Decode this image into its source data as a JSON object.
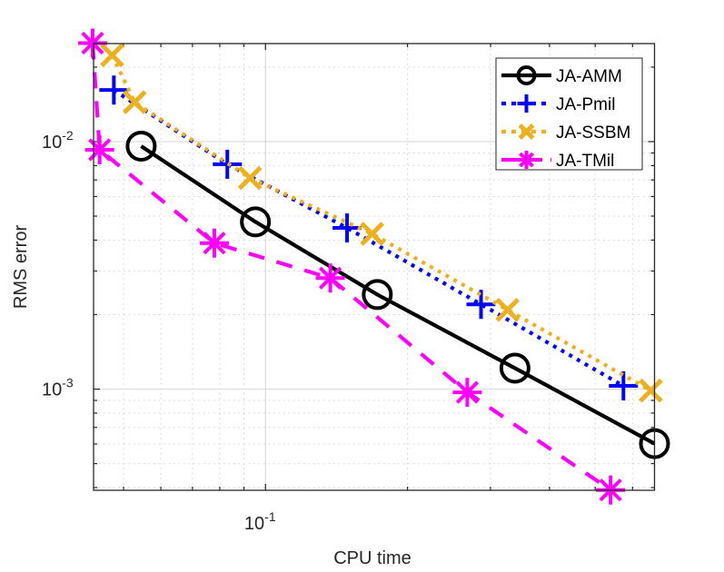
{
  "chart_data": {
    "type": "line",
    "title": "",
    "xlabel": "CPU time",
    "ylabel": "RMS error",
    "xscale": "log",
    "yscale": "log",
    "xlim": [
      0.0432,
      0.668
    ],
    "ylim": [
      0.00039,
      0.0249
    ],
    "grid": true,
    "minor_grid": true,
    "legend_position": "top-right",
    "x_ticks": [
      {
        "base": "10",
        "exp": "-1",
        "value": 0.1
      }
    ],
    "y_ticks": [
      {
        "base": "10",
        "exp": "-2",
        "value": 0.01
      },
      {
        "base": "10",
        "exp": "-3",
        "value": 0.001
      }
    ],
    "series": [
      {
        "name": "JA-AMM",
        "color": "#000000",
        "line_style": "solid",
        "marker": "circle",
        "x": [
          0.0545,
          0.0952,
          0.1726,
          0.338,
          0.668
        ],
        "y": [
          0.00959,
          0.00474,
          0.00241,
          0.001215,
          0.000602
        ]
      },
      {
        "name": "JA-Pmil",
        "color": "#0000FF",
        "line_style": "dotted",
        "marker": "plus",
        "x": [
          0.0477,
          0.083,
          0.1489,
          0.2864,
          0.574
        ],
        "y": [
          0.01616,
          0.0081,
          0.00448,
          0.0022,
          0.00103
        ]
      },
      {
        "name": "JA-SSBM",
        "color": "#EDB120",
        "line_style": "dotted",
        "marker": "x",
        "x": [
          0.0473,
          0.0528,
          0.0927,
          0.1683,
          0.326,
          0.656
        ],
        "y": [
          0.02234,
          0.01443,
          0.00713,
          0.00424,
          0.00209,
          0.000986
        ]
      },
      {
        "name": "JA-TMil",
        "color": "#FF00FF",
        "line_style": "dashed",
        "marker": "asterisk",
        "x": [
          0.043,
          0.0445,
          0.0779,
          0.1372,
          0.2678,
          0.539
        ],
        "y": [
          0.025,
          0.00927,
          0.00389,
          0.00281,
          0.00097,
          0.000391
        ]
      }
    ]
  }
}
